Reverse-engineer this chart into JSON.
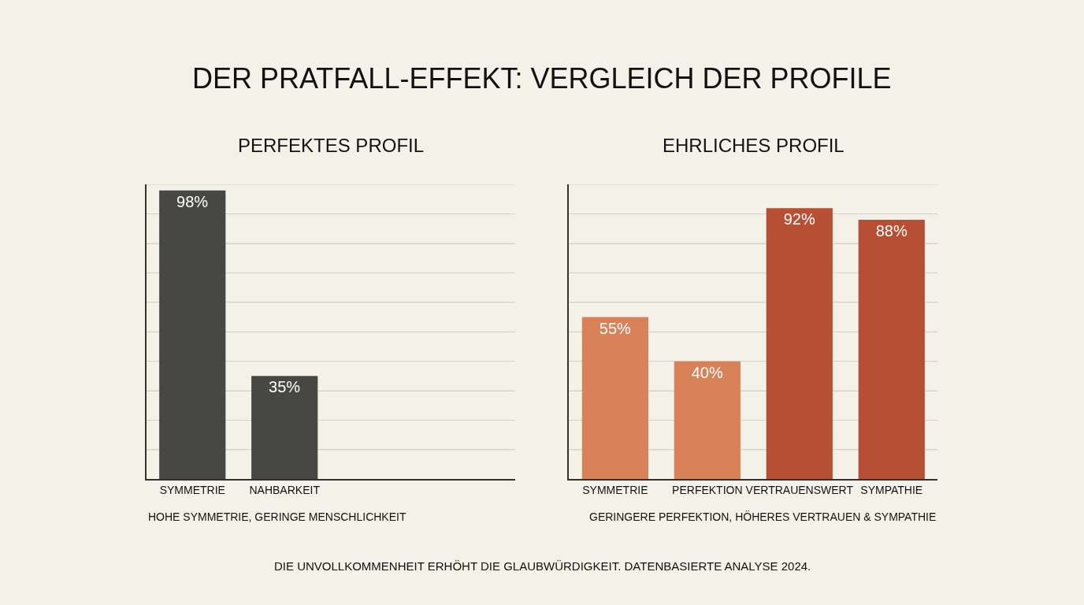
{
  "chart_data": [
    {
      "type": "bar",
      "title": "PERFEKTES PROFIL",
      "categories": [
        "SYMMETRIE",
        "NAHBARKEIT"
      ],
      "values": [
        98,
        35
      ],
      "colors": [
        "#474744",
        "#474744"
      ],
      "value_labels": [
        "98%",
        "35%"
      ],
      "ylim": [
        0,
        100
      ],
      "yticks": [
        {
          "value": 0,
          "label": null
        },
        {
          "value": 10,
          "label": null
        },
        {
          "value": 20,
          "label": null
        },
        {
          "value": 30,
          "label": null
        },
        {
          "value": 40,
          "label": null
        },
        {
          "value": 50,
          "label": null
        },
        {
          "value": 60,
          "label": null
        },
        {
          "value": 70,
          "label": null
        },
        {
          "value": 80,
          "label": null
        },
        {
          "value": 90,
          "label": null
        },
        {
          "value": 100,
          "label": null
        }
      ],
      "grid": "y",
      "tick_labels": "x",
      "annotations": [
        "DER PRATFALL-EFFEKT: VERGLEICH DER PROFILE",
        "HOHE SYMMETRIE, GERINGE MENSCHLICHKEIT"
      ]
    },
    {
      "type": "bar",
      "title": "EHRLICHES PROFIL",
      "categories": [
        "SYMMETRIE",
        "PERFEKTION",
        "VERTRAUENSWERT",
        "SYMPATHIE"
      ],
      "values": [
        55,
        40,
        92,
        88
      ],
      "colors": [
        "#d9825a",
        "#d9825a",
        "#b84e33",
        "#b84e33"
      ],
      "value_labels": [
        "55%",
        "40%",
        "92%",
        "88%"
      ],
      "ylim": [
        0,
        100
      ],
      "yticks": [
        {
          "value": 0,
          "label": null
        },
        {
          "value": 10,
          "label": null
        },
        {
          "value": 20,
          "label": null
        },
        {
          "value": 30,
          "label": null
        },
        {
          "value": 40,
          "label": null
        },
        {
          "value": 50,
          "label": null
        },
        {
          "value": 60,
          "label": null
        },
        {
          "value": 70,
          "label": null
        },
        {
          "value": 80,
          "label": null
        },
        {
          "value": 90,
          "label": null
        },
        {
          "value": 100,
          "label": null
        }
      ],
      "grid": "y",
      "tick_labels": "x",
      "annotations": [
        "GERINGERE PERFEKTION, HÖHERES VERTRAUEN & SYMPATHIE",
        "DIE UNVOLLKOMMENHEIT ERHÖHT DIE GLAUBWÜRDIGKEIT. DATENBASIERTE ANALYSE 2024."
      ]
    }
  ]
}
